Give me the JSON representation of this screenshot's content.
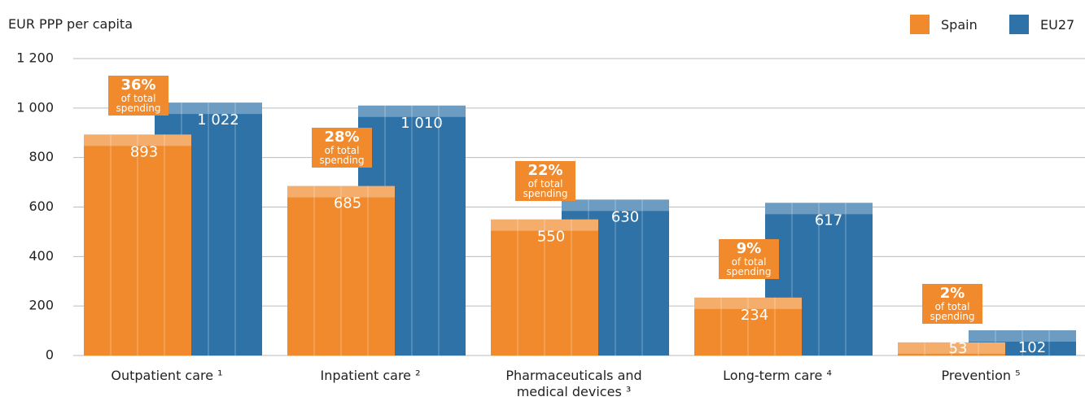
{
  "chart_data": {
    "type": "bar",
    "y_axis_label": "EUR PPP per capita",
    "categories": [
      "Outpatient care ¹",
      "Inpatient care ²",
      "Pharmaceuticals and medical devices ³",
      "Long-term care ⁴",
      "Prevention ⁵"
    ],
    "series": [
      {
        "name": "Spain",
        "color": "#f08a2c",
        "values": [
          893,
          685,
          550,
          234,
          53
        ]
      },
      {
        "name": "EU27",
        "color": "#2e72a8",
        "values": [
          1022,
          1010,
          630,
          617,
          102
        ],
        "value_labels": [
          "1 022",
          "1 010",
          "630",
          "617",
          "102"
        ]
      }
    ],
    "share_labels": [
      "36%",
      "28%",
      "22%",
      "9%",
      "2%"
    ],
    "share_note": "of total spending",
    "ylim": [
      0,
      1200
    ],
    "yticks": [
      0,
      200,
      400,
      600,
      800,
      {
        "value": 1000,
        "label": "1 000"
      },
      {
        "value": 1200,
        "label": "1 200"
      }
    ],
    "grid": true,
    "legend": "top-right"
  }
}
